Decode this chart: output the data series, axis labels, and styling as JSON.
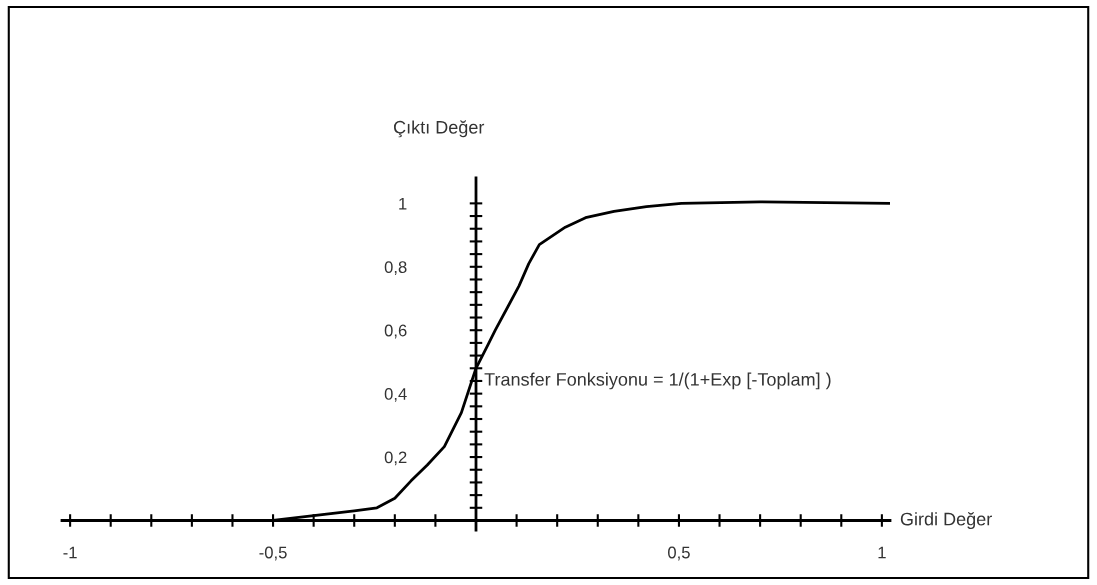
{
  "chart_data": {
    "type": "line",
    "xlabel": "Girdi Değer",
    "ylabel": "Çıktı Değer",
    "annotations": [
      "Transfer Fonksiyonu = 1/(1+Exp [-Toplam] )"
    ],
    "x": [
      -0.5,
      -0.4,
      -0.3,
      -0.244,
      -0.2,
      -0.16,
      -0.12,
      -0.078,
      -0.036,
      0,
      0.03,
      0.0475,
      0.106,
      0.13,
      0.156,
      0.22,
      0.27,
      0.34,
      0.42,
      0.506,
      0.7,
      1.02
    ],
    "series": [
      {
        "color": "#000000",
        "values": [
          0,
          0.015,
          0.03,
          0.04,
          0.07,
          0.125,
          0.175,
          0.233,
          0.34,
          0.48,
          0.555,
          0.6,
          0.74,
          0.81,
          0.87,
          0.925,
          0.955,
          0.975,
          0.99,
          1.0,
          1.005,
          1.0
        ]
      }
    ],
    "xlim": [
      -1.02,
      1.02
    ],
    "ylim": [
      -0.03,
      1.08
    ],
    "xticks": [
      {
        "value": -1,
        "label": "-1"
      },
      {
        "value": -0.9,
        "label": null
      },
      {
        "value": -0.8,
        "label": null
      },
      {
        "value": -0.7,
        "label": null
      },
      {
        "value": -0.6,
        "label": null
      },
      {
        "value": -0.5,
        "label": "-0,5"
      },
      {
        "value": -0.4,
        "label": null
      },
      {
        "value": -0.3,
        "label": null
      },
      {
        "value": -0.2,
        "label": null
      },
      {
        "value": -0.1,
        "label": null
      },
      {
        "value": 0.1,
        "label": null
      },
      {
        "value": 0.2,
        "label": null
      },
      {
        "value": 0.3,
        "label": null
      },
      {
        "value": 0.4,
        "label": null
      },
      {
        "value": 0.5,
        "label": "0,5"
      },
      {
        "value": 0.6,
        "label": null
      },
      {
        "value": 0.7,
        "label": null
      },
      {
        "value": 0.8,
        "label": null
      },
      {
        "value": 0.9,
        "label": null
      },
      {
        "value": 1,
        "label": "1"
      }
    ],
    "yticks": [
      {
        "value": 0.04,
        "label": null
      },
      {
        "value": 0.08,
        "label": null
      },
      {
        "value": 0.12,
        "label": null
      },
      {
        "value": 0.16,
        "label": null
      },
      {
        "value": 0.2,
        "label": "0,2"
      },
      {
        "value": 0.24,
        "label": null
      },
      {
        "value": 0.28,
        "label": null
      },
      {
        "value": 0.32,
        "label": null
      },
      {
        "value": 0.36,
        "label": null
      },
      {
        "value": 0.4,
        "label": "0,4"
      },
      {
        "value": 0.44,
        "label": null
      },
      {
        "value": 0.48,
        "label": null
      },
      {
        "value": 0.52,
        "label": null
      },
      {
        "value": 0.56,
        "label": null
      },
      {
        "value": 0.6,
        "label": "0,6"
      },
      {
        "value": 0.64,
        "label": null
      },
      {
        "value": 0.68,
        "label": null
      },
      {
        "value": 0.72,
        "label": null
      },
      {
        "value": 0.76,
        "label": null
      },
      {
        "value": 0.8,
        "label": "0,8"
      },
      {
        "value": 0.84,
        "label": null
      },
      {
        "value": 0.88,
        "label": null
      },
      {
        "value": 0.92,
        "label": null
      },
      {
        "value": 0.96,
        "label": null
      },
      {
        "value": 1,
        "label": "1"
      }
    ],
    "grid": false,
    "legend": false,
    "marker": "none",
    "line_style": "solid"
  }
}
